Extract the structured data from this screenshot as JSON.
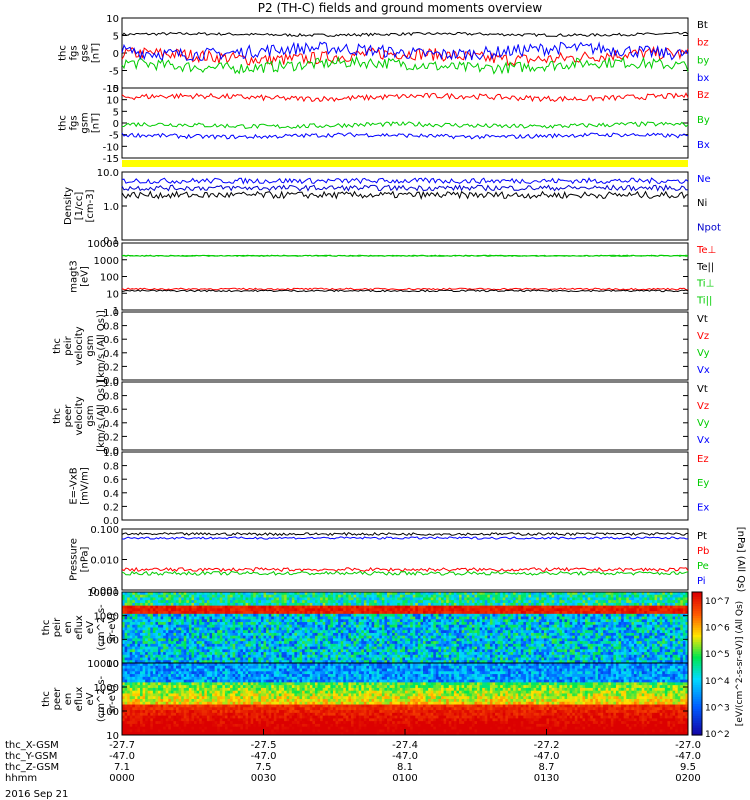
{
  "chart_data": {
    "type": "line",
    "title": "P2 (TH-C) fields and ground moments overview",
    "date": "2016 Sep 21",
    "time_axis": {
      "row_labels": [
        "thc_X-GSM",
        "thc_Y-GSM",
        "thc_Z-GSM",
        "hhmm"
      ],
      "ticks": [
        {
          "x": "-27.7",
          "y": "-47.0",
          "z": "7.1",
          "t": "0000"
        },
        {
          "x": "-27.5",
          "y": "-47.0",
          "z": "7.5",
          "t": "0030"
        },
        {
          "x": "-27.4",
          "y": "-47.0",
          "z": "8.1",
          "t": "0100"
        },
        {
          "x": "-27.2",
          "y": "-47.0",
          "z": "8.7",
          "t": "0130"
        },
        {
          "x": "-27.0",
          "y": "-47.0",
          "z": "9.5",
          "t": "0200"
        }
      ]
    },
    "panels": [
      {
        "id": "fgs-gse",
        "ylabel": [
          "thc",
          "fgs",
          "gse",
          "[nT]"
        ],
        "yticks": [
          "10",
          "5",
          "0",
          "-5",
          "-10"
        ],
        "ylim": [
          -10,
          10
        ],
        "series": [
          {
            "name": "Bt",
            "color": "#000000",
            "level": 5.3,
            "noise": 0.4
          },
          {
            "name": "bz",
            "color": "#ff0000",
            "level": -1,
            "noise": 1.8
          },
          {
            "name": "by",
            "color": "#00cc00",
            "level": -3.5,
            "noise": 1.6
          },
          {
            "name": "bx",
            "color": "#0000ff",
            "level": 0.5,
            "noise": 1.8
          }
        ]
      },
      {
        "id": "fgs-gsm",
        "ylabel": [
          "thc",
          "fgs",
          "gsm",
          "[nT]"
        ],
        "yticks": [
          "15",
          "10",
          "5",
          "0",
          "-5",
          "-10",
          "-15"
        ],
        "ylim": [
          -15,
          15
        ],
        "series": [
          {
            "name": "Bz",
            "color": "#ff0000",
            "level": 11,
            "noise": 1.2
          },
          {
            "name": "By",
            "color": "#00cc00",
            "level": -1,
            "noise": 1.0
          },
          {
            "name": "Bx",
            "color": "#0000ff",
            "level": -5.5,
            "noise": 0.9
          }
        ]
      },
      {
        "id": "density",
        "ylabel": [
          "Density",
          "[1/cc]",
          "[cm-3]"
        ],
        "yticks": [
          "10.0",
          "1.0",
          "0.1"
        ],
        "ylim": [
          0.1,
          10
        ],
        "log": true,
        "series": [
          {
            "name": "Ne",
            "color": "#0000ff",
            "level": 5.5,
            "noise": 0.08
          },
          {
            "name": "Ni",
            "color": "#000000",
            "level": 2.1,
            "noise": 0.1
          },
          {
            "name": "Npot",
            "color": "#0000cc",
            "level": 3.4,
            "noise": 0.08
          }
        ]
      },
      {
        "id": "temp",
        "ylabel": [
          "magt3",
          "[eV]"
        ],
        "yticks": [
          "10000",
          "1000",
          "100",
          "10",
          "1"
        ],
        "ylim": [
          1,
          10000
        ],
        "log": true,
        "series": [
          {
            "name": "Te⊥",
            "color": "#ff0000",
            "level": 18,
            "noise": 0.05
          },
          {
            "name": "Te||",
            "color": "#000000",
            "level": 14,
            "noise": 0.05
          },
          {
            "name": "Ti⊥",
            "color": "#00cc00",
            "level": 1700,
            "noise": 0.03
          },
          {
            "name": "Ti||",
            "color": "#00cc00",
            "level": 1750,
            "noise": 0.03
          }
        ]
      },
      {
        "id": "peir-vel",
        "ylabel": [
          "thc",
          "peir",
          "velocity",
          "gsm",
          "[km/s (All Qs)]"
        ],
        "yticks": [
          "1.0",
          "0.8",
          "0.6",
          "0.4",
          "0.2",
          "0.0"
        ],
        "ylim": [
          0,
          1
        ],
        "series": [
          {
            "name": "Vt",
            "color": "#000000"
          },
          {
            "name": "Vz",
            "color": "#ff0000"
          },
          {
            "name": "Vy",
            "color": "#00cc00"
          },
          {
            "name": "Vx",
            "color": "#0000ff"
          }
        ]
      },
      {
        "id": "peer-vel",
        "ylabel": [
          "thc",
          "peer",
          "velocity",
          "gsm",
          "[km/s (All Qs)]"
        ],
        "yticks": [
          "1.0",
          "0.8",
          "0.6",
          "0.4",
          "0.2",
          "0.0"
        ],
        "ylim": [
          0,
          1
        ],
        "series": [
          {
            "name": "Vt",
            "color": "#000000"
          },
          {
            "name": "Vz",
            "color": "#ff0000"
          },
          {
            "name": "Vy",
            "color": "#00cc00"
          },
          {
            "name": "Vx",
            "color": "#0000ff"
          }
        ]
      },
      {
        "id": "efield",
        "ylabel": [
          "E=-VxB",
          "[mV/m]"
        ],
        "yticks": [
          "1.0",
          "0.8",
          "0.6",
          "0.4",
          "0.2",
          "0.0"
        ],
        "ylim": [
          0,
          1
        ],
        "series": [
          {
            "name": "Ez",
            "color": "#ff0000"
          },
          {
            "name": "Ey",
            "color": "#00cc00"
          },
          {
            "name": "Ex",
            "color": "#0000ff"
          }
        ]
      },
      {
        "id": "pressure",
        "ylabel": [
          "Pressure",
          "[nPa]"
        ],
        "yticks": [
          "0.100",
          "0.010",
          "0.001"
        ],
        "ylim": [
          0.001,
          0.5
        ],
        "log": true,
        "right_label": "[nPa] (All Qs)",
        "series": [
          {
            "name": "Pt",
            "color": "#000000",
            "level": 0.3,
            "noise": 0.06
          },
          {
            "name": "Pb",
            "color": "#ff0000",
            "level": 0.008,
            "noise": 0.08
          },
          {
            "name": "Pe",
            "color": "#00cc00",
            "level": 0.0055,
            "noise": 0.08
          },
          {
            "name": "Pi",
            "color": "#0000ff",
            "level": 0.2,
            "noise": 0.05
          }
        ]
      },
      {
        "id": "peir-spec",
        "type": "heatmap",
        "ylabel": [
          "thc",
          "peir",
          "en",
          "eflux",
          "eV",
          "(cm^2-s-",
          "sr-eV)"
        ],
        "yticks": [
          "10000",
          "1000",
          "100",
          "10"
        ]
      },
      {
        "id": "peer-spec",
        "type": "heatmap",
        "ylabel": [
          "thc",
          "peer",
          "en",
          "eflux",
          "eV",
          "(cm^2-s-",
          "sr-eV)"
        ],
        "yticks": [
          "10000",
          "1000",
          "100",
          "10"
        ]
      }
    ],
    "colorbar": {
      "label": "[eV/(cm^2-s-sr-eV)] (All Qs)",
      "ticks": [
        "10^7",
        "10^6",
        "10^5",
        "10^4",
        "10^3",
        "10^2"
      ]
    }
  }
}
